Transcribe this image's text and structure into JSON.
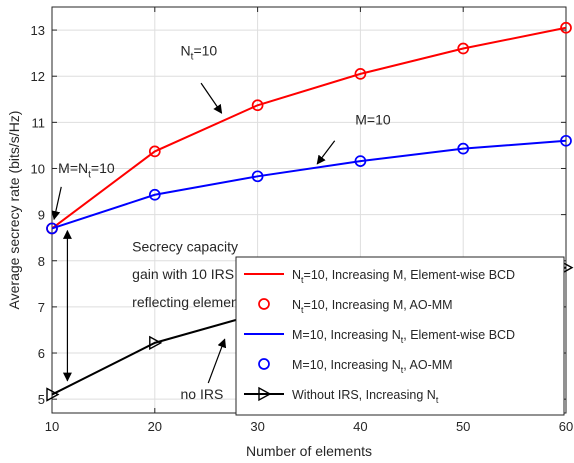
{
  "chart_data": {
    "type": "line",
    "xlabel": "Number of elements",
    "ylabel": "Average secrecy rate (bits/s/Hz)",
    "xlim": [
      10,
      60
    ],
    "ylim": [
      4.7,
      13.5
    ],
    "xticks": [
      10,
      20,
      30,
      40,
      50,
      60
    ],
    "yticks": [
      5,
      6,
      7,
      8,
      9,
      10,
      11,
      12,
      13
    ],
    "grid": true,
    "legend_position": "bottom-right",
    "series": [
      {
        "name": "N_t=10, Increasing M, Element-wise BCD",
        "style": "line",
        "color": "#ff0000",
        "x": [
          10,
          20,
          30,
          40,
          50,
          60
        ],
        "y": [
          8.7,
          10.37,
          11.37,
          12.05,
          12.6,
          13.05
        ]
      },
      {
        "name": "N_t=10, Increasing M, AO-MM",
        "style": "circle",
        "color": "#ff0000",
        "x": [
          10,
          20,
          30,
          40,
          50,
          60
        ],
        "y": [
          8.7,
          10.37,
          11.37,
          12.05,
          12.6,
          13.05
        ]
      },
      {
        "name": "M=10, Increasing N_t, Element-wise BCD",
        "style": "line",
        "color": "#0000ff",
        "x": [
          10,
          20,
          30,
          40,
          50,
          60
        ],
        "y": [
          8.7,
          9.43,
          9.83,
          10.16,
          10.43,
          10.6
        ]
      },
      {
        "name": "M=10, Increasing N_t, AO-MM",
        "style": "circle",
        "color": "#0000ff",
        "x": [
          10,
          20,
          30,
          40,
          50,
          60
        ],
        "y": [
          8.7,
          9.43,
          9.83,
          10.16,
          10.43,
          10.6
        ]
      },
      {
        "name": "Without IRS, Increasing N_t",
        "style": "line-triangle",
        "color": "#000000",
        "x": [
          10,
          20,
          30,
          40,
          50,
          60
        ],
        "y": [
          5.1,
          6.22,
          6.85,
          7.2,
          7.55,
          7.85
        ]
      }
    ],
    "annotations": [
      {
        "text": "N_t=10",
        "x": 22.5,
        "y": 12.45,
        "arrow_from": [
          24.5,
          11.85
        ],
        "arrow_to": [
          26.5,
          11.2
        ]
      },
      {
        "text": "M=10",
        "x": 39.5,
        "y": 10.95,
        "arrow_from": [
          37.5,
          10.6
        ],
        "arrow_to": [
          35.8,
          10.1
        ]
      },
      {
        "text": "M=N_t=10",
        "x": 10.6,
        "y": 9.9,
        "arrow_from": [
          10.9,
          9.6
        ],
        "arrow_to": [
          10.2,
          8.9
        ]
      },
      {
        "text": "Secrecy capacity",
        "x": 17.8,
        "y": 8.2
      },
      {
        "text": "gain with 10 IRS",
        "x": 17.8,
        "y": 7.6
      },
      {
        "text": "reflecting elements",
        "x": 17.8,
        "y": 7.0
      },
      {
        "text": "no IRS",
        "x": 22.5,
        "y": 5.0,
        "arrow_from": [
          25.2,
          5.35
        ],
        "arrow_to": [
          26.8,
          6.3
        ]
      }
    ]
  }
}
